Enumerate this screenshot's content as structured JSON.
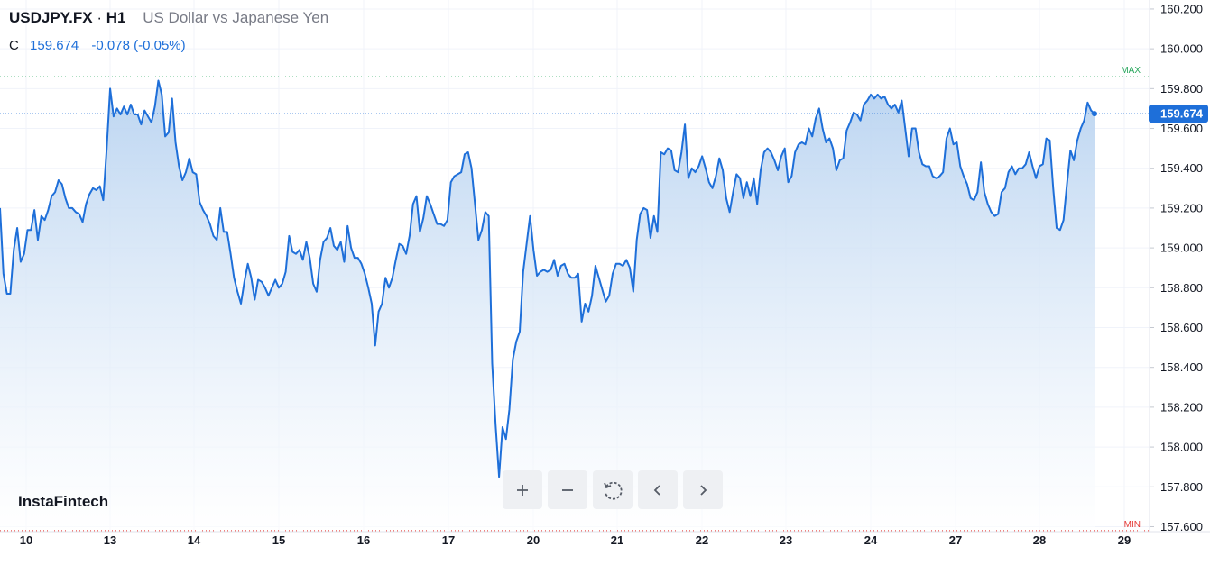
{
  "legend": {
    "symbol": "USDJPY.FX",
    "separator": "·",
    "timeframe": "H1",
    "description": "US Dollar vs Japanese Yen",
    "close_label": "C",
    "close_value": "159.674",
    "change": "-0.078 (-0.05%)"
  },
  "brand": "InstaFintech",
  "controls": {
    "zoom_in": "plus-icon",
    "zoom_out": "minus-icon",
    "reset": "reset-icon",
    "scroll_left": "chevron-left-icon",
    "scroll_right": "chevron-right-icon"
  },
  "colors": {
    "line": "#1e6fd9",
    "area_top": "#b7d2f0",
    "area_bottom": "#ffffff",
    "max_line": "#26a65b",
    "min_line": "#e53935",
    "price_tag": "#1e6fd9",
    "grid": "#f0f3fa",
    "axis_text": "#131722"
  },
  "chart_data": {
    "type": "area",
    "y_ticks": [
      "160.200",
      "160.000",
      "159.800",
      "159.600",
      "159.400",
      "159.200",
      "159.000",
      "158.800",
      "158.600",
      "158.400",
      "158.200",
      "158.000",
      "157.800",
      "157.600"
    ],
    "x_ticks": [
      "10",
      "13",
      "14",
      "15",
      "16",
      "17",
      "20",
      "21",
      "22",
      "23",
      "24",
      "27",
      "28",
      "29"
    ],
    "ylim": [
      157.575,
      160.245
    ],
    "last_price": "159.674",
    "max_label": "MAX",
    "max_value": 159.86,
    "min_label": "MIN",
    "min_value": 157.58,
    "grid": true,
    "series": [
      {
        "values": [
          159.2,
          158.87,
          158.77,
          158.77,
          158.99,
          159.1,
          158.93,
          158.97,
          159.09,
          159.09,
          159.19,
          159.04,
          159.16,
          159.14,
          159.19,
          159.26,
          159.28,
          159.34,
          159.32,
          159.25,
          159.2,
          159.2,
          159.18,
          159.17,
          159.13,
          159.22,
          159.27,
          159.3,
          159.29,
          159.31,
          159.24,
          159.5,
          159.8,
          159.66,
          159.7,
          159.67,
          159.71,
          159.67,
          159.72,
          159.67,
          159.67,
          159.62,
          159.69,
          159.66,
          159.63,
          159.71,
          159.84,
          159.77,
          159.56,
          159.58,
          159.75,
          159.53,
          159.41,
          159.34,
          159.38,
          159.45,
          159.38,
          159.37,
          159.23,
          159.19,
          159.16,
          159.12,
          159.06,
          159.04,
          159.2,
          159.08,
          159.08,
          158.97,
          158.85,
          158.78,
          158.72,
          158.83,
          158.92,
          158.85,
          158.74,
          158.84,
          158.83,
          158.8,
          158.76,
          158.8,
          158.84,
          158.8,
          158.82,
          158.88,
          159.06,
          158.98,
          158.97,
          158.99,
          158.94,
          159.03,
          158.95,
          158.82,
          158.78,
          158.94,
          159.03,
          159.05,
          159.1,
          159.01,
          158.99,
          159.03,
          158.93,
          159.11,
          159.0,
          158.95,
          158.95,
          158.92,
          158.87,
          158.8,
          158.72,
          158.51,
          158.68,
          158.72,
          158.85,
          158.8,
          158.85,
          158.94,
          159.02,
          159.01,
          158.97,
          159.06,
          159.22,
          159.26,
          159.08,
          159.15,
          159.26,
          159.22,
          159.17,
          159.12,
          159.12,
          159.11,
          159.14,
          159.33,
          159.36,
          159.37,
          159.38,
          159.47,
          159.48,
          159.4,
          159.22,
          159.04,
          159.09,
          159.18,
          159.16,
          158.42,
          158.11,
          157.85,
          158.1,
          158.04,
          158.19,
          158.44,
          158.53,
          158.58,
          158.88,
          159.02,
          159.16,
          158.99,
          158.86,
          158.88,
          158.89,
          158.88,
          158.89,
          158.94,
          158.86,
          158.91,
          158.92,
          158.87,
          158.85,
          158.85,
          158.87,
          158.63,
          158.72,
          158.68,
          158.76,
          158.91,
          158.85,
          158.79,
          158.73,
          158.76,
          158.87,
          158.92,
          158.92,
          158.91,
          158.94,
          158.9,
          158.78,
          159.04,
          159.17,
          159.2,
          159.19,
          159.05,
          159.16,
          159.08,
          159.48,
          159.47,
          159.5,
          159.49,
          159.39,
          159.38,
          159.48,
          159.62,
          159.35,
          159.4,
          159.38,
          159.41,
          159.46,
          159.4,
          159.33,
          159.3,
          159.36,
          159.45,
          159.39,
          159.25,
          159.18,
          159.28,
          159.37,
          159.35,
          159.25,
          159.33,
          159.26,
          159.35,
          159.22,
          159.39,
          159.48,
          159.5,
          159.48,
          159.44,
          159.39,
          159.46,
          159.5,
          159.33,
          159.36,
          159.48,
          159.52,
          159.53,
          159.52,
          159.6,
          159.56,
          159.65,
          159.7,
          159.6,
          159.53,
          159.55,
          159.5,
          159.39,
          159.44,
          159.45,
          159.59,
          159.63,
          159.68,
          159.67,
          159.64,
          159.72,
          159.74,
          159.77,
          159.75,
          159.77,
          159.75,
          159.76,
          159.72,
          159.7,
          159.72,
          159.68,
          159.74,
          159.6,
          159.46,
          159.6,
          159.6,
          159.48,
          159.42,
          159.41,
          159.41,
          159.36,
          159.35,
          159.36,
          159.38,
          159.55,
          159.6,
          159.52,
          159.53,
          159.41,
          159.36,
          159.32,
          159.25,
          159.24,
          159.28,
          159.43,
          159.28,
          159.22,
          159.18,
          159.16,
          159.17,
          159.28,
          159.3,
          159.38,
          159.41,
          159.37,
          159.4,
          159.4,
          159.42,
          159.48,
          159.41,
          159.35,
          159.41,
          159.42,
          159.55,
          159.54,
          159.3,
          159.1,
          159.09,
          159.14,
          159.32,
          159.49,
          159.44,
          159.54,
          159.6,
          159.64,
          159.73,
          159.69,
          159.674
        ]
      }
    ]
  }
}
